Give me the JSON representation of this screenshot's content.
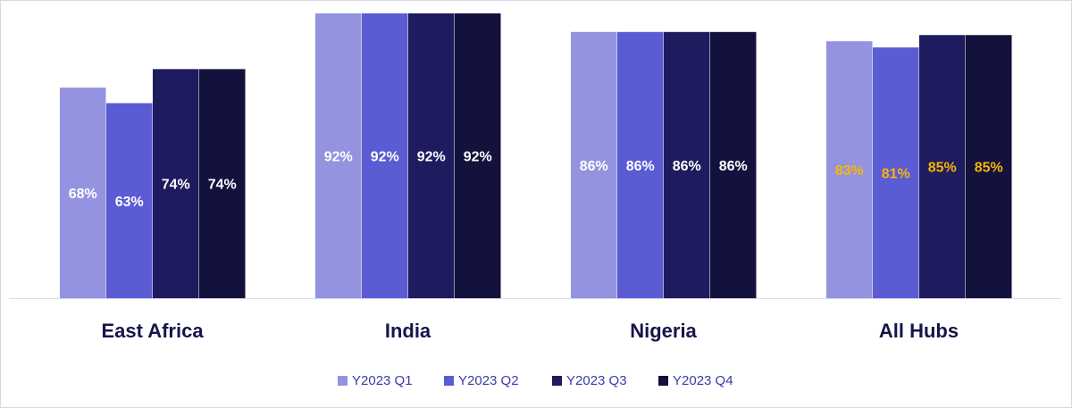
{
  "chart_data": {
    "type": "bar",
    "categories": [
      "East Africa",
      "India",
      "Nigeria",
      "All Hubs"
    ],
    "series": [
      {
        "name": "Y2023 Q1",
        "values": [
          68,
          92,
          86,
          83
        ],
        "labels": [
          "68%",
          "92%",
          "86%",
          "83%"
        ],
        "color": "#9393e0"
      },
      {
        "name": "Y2023 Q2",
        "values": [
          63,
          92,
          86,
          81
        ],
        "labels": [
          "63%",
          "92%",
          "86%",
          "81%"
        ],
        "color": "#5b5bd3"
      },
      {
        "name": "Y2023 Q3",
        "values": [
          74,
          92,
          86,
          85
        ],
        "labels": [
          "74%",
          "92%",
          "86%",
          "85%"
        ],
        "color": "#1e1b5e"
      },
      {
        "name": "Y2023 Q4",
        "values": [
          74,
          92,
          86,
          85
        ],
        "labels": [
          "74%",
          "92%",
          "86%",
          "85%"
        ],
        "color": "#13123d"
      }
    ],
    "label_colors": [
      "#ffffff",
      "#ffffff",
      "#ffffff",
      "#f5b800"
    ],
    "ylim": [
      0,
      92
    ],
    "grid": false,
    "legend_position": "bottom",
    "title": "",
    "xlabel": "",
    "ylabel": ""
  }
}
